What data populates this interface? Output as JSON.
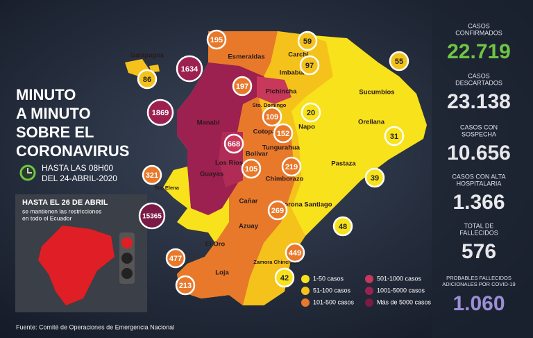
{
  "title_lines": [
    "MINUTO",
    "A MINUTO",
    "SOBRE EL",
    "CORONAVIRUS"
  ],
  "update_lines": [
    "HASTA LAS 08H00",
    "DEL 24-ABRIL-2020"
  ],
  "restriction": {
    "title": "HASTA EL 26 DE ABRIL",
    "lines": [
      "se mantienen las restricciones",
      "en todo el Ecuador"
    ]
  },
  "source": "Fuente: Comité de Operaciones de Emergencia Nacional",
  "stats": [
    {
      "label_lines": [
        "CASOS",
        "CONFIRMADOS"
      ],
      "value": "22.719",
      "color": "#6fc544"
    },
    {
      "label_lines": [
        "CASOS",
        "DESCARTADOS"
      ],
      "value": "23.138",
      "color": "#e8e8ec"
    },
    {
      "label_lines": [
        "CASOS CON",
        "SOSPECHA"
      ],
      "value": "10.656",
      "color": "#e8e8ec"
    },
    {
      "label_lines": [
        "CASOS CON ALTA",
        "HOSPITALARIA"
      ],
      "value": "1.366",
      "color": "#e8e8ec"
    },
    {
      "label_lines": [
        "TOTAL DE",
        "FALLECIDOS"
      ],
      "value": "576",
      "color": "#e8e8ec"
    },
    {
      "label_lines": [
        "PROBABLES FALLECIDOS",
        "ADICIONALES POR COVID-19"
      ],
      "value": "1.060",
      "color": "#9b8fd6"
    }
  ],
  "regions": [
    "Galápagos",
    "Esmeraldas",
    "Carchi",
    "Imbabura",
    "Sucumbíos",
    "Pichincha",
    "Sto. Domingo",
    "Manabí",
    "Napo",
    "Orellana",
    "Cotopaxi",
    "Tungurahua",
    "Bolívar",
    "Los Ríos",
    "Pastaza",
    "Chimborazo",
    "Guayas",
    "Sta. Elena",
    "Cañar",
    "Morona Santiago",
    "Azuay",
    "El Oro",
    "Zamora Chinchipe",
    "Loja"
  ],
  "counts": [
    {
      "value": 195,
      "color": "#e8792b"
    },
    {
      "value": 59,
      "color": "#f5c21b"
    },
    {
      "value": 97,
      "color": "#f5c21b"
    },
    {
      "value": 55,
      "color": "#f5c21b"
    },
    {
      "value": 86,
      "color": "#f5c21b"
    },
    {
      "value": 1634,
      "color": "#9c2050"
    },
    {
      "value": 197,
      "color": "#e8792b"
    },
    {
      "value": 1869,
      "color": "#9c2050"
    },
    {
      "value": 109,
      "color": "#e8792b"
    },
    {
      "value": 20,
      "color": "#f7e21c"
    },
    {
      "value": 31,
      "color": "#f7e21c"
    },
    {
      "value": 152,
      "color": "#e8792b"
    },
    {
      "value": 668,
      "color": "#c8385b"
    },
    {
      "value": 105,
      "color": "#e8792b"
    },
    {
      "value": 219,
      "color": "#e8792b"
    },
    {
      "value": 39,
      "color": "#f7e21c"
    },
    {
      "value": 321,
      "color": "#e8792b"
    },
    {
      "value": 15365,
      "color": "#7a1a45"
    },
    {
      "value": 269,
      "color": "#e8792b"
    },
    {
      "value": 48,
      "color": "#f7e21c"
    },
    {
      "value": 449,
      "color": "#e8792b"
    },
    {
      "value": 477,
      "color": "#e8792b"
    },
    {
      "value": 42,
      "color": "#f7e21c"
    },
    {
      "value": 213,
      "color": "#e8792b"
    }
  ],
  "legend": [
    {
      "label": "1-50 casos",
      "color": "#f7e21c"
    },
    {
      "label": "51-100 casos",
      "color": "#f5c21b"
    },
    {
      "label": "101-500 casos",
      "color": "#e8792b"
    },
    {
      "label": "501-1000 casos",
      "color": "#c8385b"
    },
    {
      "label": "1001-5000 casos",
      "color": "#9c2050"
    },
    {
      "label": "Más de 5000 casos",
      "color": "#7a1a45"
    }
  ]
}
